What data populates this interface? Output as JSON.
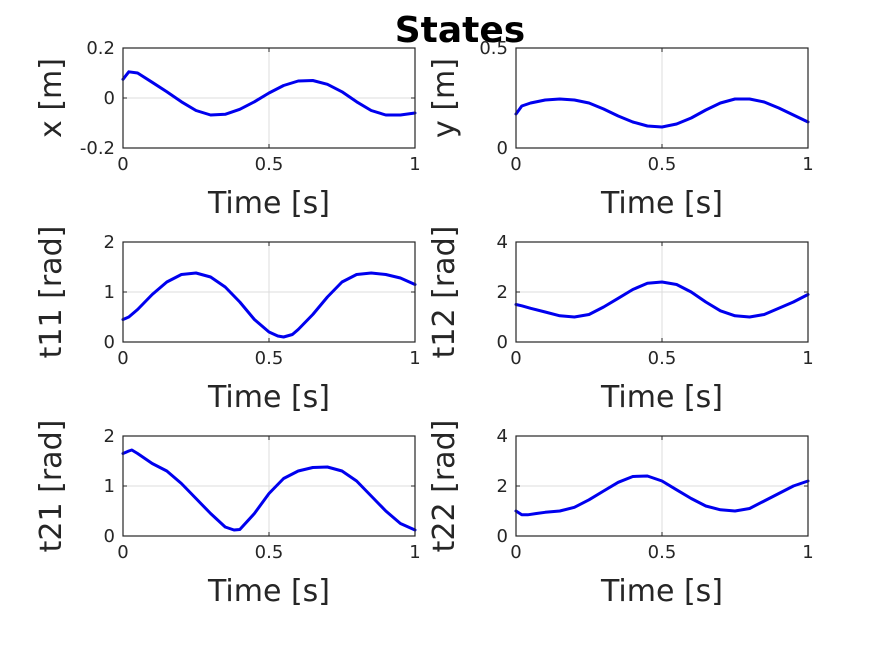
{
  "figure_title": "States",
  "chart_data": [
    {
      "type": "line",
      "title": "",
      "xlabel": "Time [s]",
      "ylabel": "x [m]",
      "xlim": [
        0,
        1
      ],
      "ylim": [
        -0.2,
        0.2
      ],
      "xticks": [
        "0",
        "0.5",
        "1"
      ],
      "yticks": [
        "-0.2",
        "0",
        "0.2"
      ],
      "grid": true,
      "color": "#0000ee",
      "x": [
        0,
        0.02,
        0.05,
        0.1,
        0.15,
        0.2,
        0.25,
        0.3,
        0.35,
        0.4,
        0.45,
        0.5,
        0.55,
        0.6,
        0.65,
        0.7,
        0.75,
        0.8,
        0.85,
        0.9,
        0.95,
        1.0
      ],
      "values": [
        0.075,
        0.105,
        0.1,
        0.063,
        0.025,
        -0.015,
        -0.05,
        -0.068,
        -0.065,
        -0.045,
        -0.015,
        0.02,
        0.05,
        0.068,
        0.07,
        0.055,
        0.025,
        -0.015,
        -0.05,
        -0.068,
        -0.068,
        -0.06
      ]
    },
    {
      "type": "line",
      "title": "",
      "xlabel": "Time [s]",
      "ylabel": "y [m]",
      "xlim": [
        0,
        1
      ],
      "ylim": [
        0,
        0.5
      ],
      "xticks": [
        "0",
        "0.5",
        "1"
      ],
      "yticks": [
        "0",
        "0.5"
      ],
      "grid": true,
      "color": "#0000ee",
      "x": [
        0,
        0.02,
        0.05,
        0.1,
        0.15,
        0.2,
        0.25,
        0.3,
        0.35,
        0.4,
        0.45,
        0.5,
        0.55,
        0.6,
        0.65,
        0.7,
        0.75,
        0.8,
        0.85,
        0.9,
        0.95,
        1.0
      ],
      "values": [
        0.17,
        0.21,
        0.225,
        0.24,
        0.245,
        0.24,
        0.225,
        0.195,
        0.16,
        0.13,
        0.11,
        0.105,
        0.12,
        0.15,
        0.19,
        0.225,
        0.245,
        0.245,
        0.23,
        0.2,
        0.165,
        0.13
      ]
    },
    {
      "type": "line",
      "title": "",
      "xlabel": "Time [s]",
      "ylabel": "t11 [rad]",
      "xlim": [
        0,
        1
      ],
      "ylim": [
        0,
        2
      ],
      "xticks": [
        "0",
        "0.5",
        "1"
      ],
      "yticks": [
        "0",
        "1",
        "2"
      ],
      "grid": true,
      "color": "#0000ee",
      "x": [
        0,
        0.02,
        0.05,
        0.1,
        0.15,
        0.2,
        0.25,
        0.3,
        0.35,
        0.4,
        0.45,
        0.5,
        0.53,
        0.55,
        0.58,
        0.6,
        0.65,
        0.7,
        0.75,
        0.8,
        0.85,
        0.9,
        0.95,
        1.0
      ],
      "values": [
        0.45,
        0.5,
        0.65,
        0.95,
        1.2,
        1.35,
        1.38,
        1.3,
        1.1,
        0.8,
        0.45,
        0.2,
        0.12,
        0.1,
        0.15,
        0.25,
        0.55,
        0.9,
        1.2,
        1.35,
        1.38,
        1.35,
        1.28,
        1.15
      ]
    },
    {
      "type": "line",
      "title": "",
      "xlabel": "Time [s]",
      "ylabel": "t12 [rad]",
      "xlim": [
        0,
        1
      ],
      "ylim": [
        0,
        4
      ],
      "xticks": [
        "0",
        "0.5",
        "1"
      ],
      "yticks": [
        "0",
        "2",
        "4"
      ],
      "grid": true,
      "color": "#0000ee",
      "x": [
        0,
        0.02,
        0.05,
        0.1,
        0.15,
        0.2,
        0.25,
        0.3,
        0.35,
        0.4,
        0.45,
        0.5,
        0.55,
        0.6,
        0.65,
        0.7,
        0.75,
        0.8,
        0.85,
        0.9,
        0.95,
        1.0
      ],
      "values": [
        1.5,
        1.45,
        1.35,
        1.2,
        1.05,
        1.0,
        1.1,
        1.4,
        1.75,
        2.1,
        2.35,
        2.4,
        2.3,
        2.0,
        1.6,
        1.25,
        1.05,
        1.0,
        1.1,
        1.35,
        1.6,
        1.9
      ]
    },
    {
      "type": "line",
      "title": "",
      "xlabel": "Time [s]",
      "ylabel": "t21 [rad]",
      "xlim": [
        0,
        1
      ],
      "ylim": [
        0,
        2
      ],
      "xticks": [
        "0",
        "0.5",
        "1"
      ],
      "yticks": [
        "0",
        "1",
        "2"
      ],
      "grid": true,
      "color": "#0000ee",
      "x": [
        0,
        0.02,
        0.03,
        0.05,
        0.1,
        0.15,
        0.2,
        0.25,
        0.3,
        0.35,
        0.38,
        0.4,
        0.45,
        0.5,
        0.55,
        0.6,
        0.65,
        0.7,
        0.75,
        0.8,
        0.85,
        0.9,
        0.95,
        1.0
      ],
      "values": [
        1.65,
        1.7,
        1.72,
        1.65,
        1.45,
        1.3,
        1.05,
        0.75,
        0.45,
        0.18,
        0.12,
        0.13,
        0.45,
        0.85,
        1.15,
        1.3,
        1.37,
        1.38,
        1.3,
        1.1,
        0.8,
        0.5,
        0.25,
        0.12
      ]
    },
    {
      "type": "line",
      "title": "",
      "xlabel": "Time [s]",
      "ylabel": "t22 [rad]",
      "xlim": [
        0,
        1
      ],
      "ylim": [
        0,
        4
      ],
      "xticks": [
        "0",
        "0.5",
        "1"
      ],
      "yticks": [
        "0",
        "2",
        "4"
      ],
      "grid": true,
      "color": "#0000ee",
      "x": [
        0,
        0.02,
        0.04,
        0.07,
        0.1,
        0.15,
        0.2,
        0.25,
        0.3,
        0.35,
        0.4,
        0.45,
        0.5,
        0.55,
        0.6,
        0.65,
        0.7,
        0.75,
        0.8,
        0.85,
        0.9,
        0.95,
        1.0
      ],
      "values": [
        1.0,
        0.85,
        0.85,
        0.9,
        0.95,
        1.0,
        1.15,
        1.45,
        1.8,
        2.15,
        2.38,
        2.4,
        2.2,
        1.85,
        1.5,
        1.2,
        1.05,
        1.0,
        1.1,
        1.4,
        1.7,
        2.0,
        2.2
      ]
    }
  ]
}
